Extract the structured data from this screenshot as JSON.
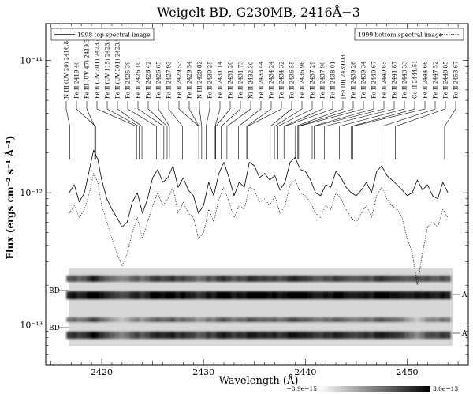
{
  "chart_data": {
    "type": "line",
    "title": "Weigelt BD, G230MB, 2416Å−3",
    "xlabel": "Wavelength (Å)",
    "ylabel": "Flux (ergs cm⁻² s⁻¹ Å⁻¹)",
    "xlim": [
      2414.5,
      2456
    ],
    "ylim": [
      5e-14,
      1.9e-11
    ],
    "yscale": "log",
    "xticks": [
      2420,
      2430,
      2440,
      2450
    ],
    "yticks": [
      {
        "value": 1e-13,
        "label": "10⁻¹³"
      },
      {
        "value": 1e-12,
        "label": "10⁻¹²"
      },
      {
        "value": 1e-11,
        "label": "10⁻¹¹"
      }
    ],
    "legend": [
      {
        "label": "1998 top spectral image",
        "style": "solid",
        "placement": "top-left"
      },
      {
        "label": "1999 bottom spectral image",
        "style": "dotted",
        "placement": "top-right"
      }
    ],
    "series": [
      {
        "name": "1998 top spectral image",
        "style": "solid",
        "x": [
          2416.8,
          2417.3,
          2417.8,
          2418.3,
          2418.8,
          2419.2,
          2419.6,
          2420.0,
          2420.5,
          2421.0,
          2421.5,
          2422.0,
          2422.5,
          2423.0,
          2423.5,
          2424.0,
          2424.5,
          2425.0,
          2425.5,
          2426.0,
          2426.5,
          2427.0,
          2427.5,
          2428.0,
          2428.5,
          2429.0,
          2429.5,
          2430.0,
          2430.5,
          2431.0,
          2431.5,
          2432.0,
          2432.5,
          2433.0,
          2433.5,
          2434.0,
          2434.5,
          2435.0,
          2435.5,
          2436.0,
          2436.5,
          2437.0,
          2437.5,
          2438.0,
          2438.5,
          2439.0,
          2439.5,
          2440.0,
          2440.5,
          2441.0,
          2441.5,
          2442.0,
          2442.5,
          2443.0,
          2443.5,
          2444.0,
          2444.5,
          2445.0,
          2445.5,
          2446.0,
          2446.5,
          2447.0,
          2447.5,
          2448.0,
          2448.5,
          2449.0,
          2449.5,
          2450.0,
          2450.5,
          2451.0,
          2451.5,
          2452.0,
          2452.5,
          2453.0,
          2453.5,
          2454.0
        ],
        "y": [
          1e-12,
          1.15e-12,
          8.5e-13,
          1e-12,
          1.5e-12,
          2.1e-12,
          1.8e-12,
          1.25e-12,
          9e-13,
          7.5e-13,
          6.5e-13,
          5.5e-13,
          6e-13,
          8.5e-13,
          1e-12,
          7e-13,
          9e-13,
          1.3e-12,
          1.5e-12,
          1.2e-12,
          1.3e-12,
          1.6e-12,
          1.1e-12,
          1.3e-12,
          1.05e-12,
          9.5e-13,
          7e-13,
          8e-13,
          1.2e-12,
          9.5e-13,
          1.4e-12,
          1.7e-12,
          1.3e-12,
          9.5e-13,
          1.2e-12,
          1.1e-12,
          1.7e-12,
          1.6e-12,
          1.3e-12,
          1.4e-12,
          1.25e-12,
          1.35e-12,
          1.05e-12,
          1.2e-12,
          1.7e-12,
          1.85e-12,
          1.5e-12,
          1.45e-12,
          1.25e-12,
          1e-12,
          9.5e-13,
          1.15e-12,
          1.1e-12,
          1.45e-12,
          1.3e-12,
          1.1e-12,
          1e-12,
          9.5e-13,
          1.05e-12,
          1.2e-12,
          1e-12,
          1.45e-12,
          1.6e-12,
          1.35e-12,
          1.25e-12,
          1.15e-12,
          1.05e-12,
          9.5e-13,
          1e-12,
          1.25e-12,
          1.05e-12,
          1.15e-12,
          9.5e-13,
          9e-13,
          1.2e-12,
          1e-12
        ]
      },
      {
        "name": "1999 bottom spectral image",
        "style": "dotted",
        "x": [
          2416.8,
          2417.3,
          2417.8,
          2418.3,
          2418.8,
          2419.2,
          2419.6,
          2420.0,
          2420.5,
          2421.0,
          2421.5,
          2422.0,
          2422.5,
          2423.0,
          2423.5,
          2424.0,
          2424.5,
          2425.0,
          2425.5,
          2426.0,
          2426.5,
          2427.0,
          2427.5,
          2428.0,
          2428.5,
          2429.0,
          2429.5,
          2430.0,
          2430.5,
          2431.0,
          2431.5,
          2432.0,
          2432.5,
          2433.0,
          2433.5,
          2434.0,
          2434.5,
          2435.0,
          2435.5,
          2436.0,
          2436.5,
          2437.0,
          2437.5,
          2438.0,
          2438.5,
          2439.0,
          2439.5,
          2440.0,
          2440.5,
          2441.0,
          2441.5,
          2442.0,
          2442.5,
          2443.0,
          2443.5,
          2444.0,
          2444.5,
          2445.0,
          2445.5,
          2446.0,
          2446.5,
          2447.0,
          2447.5,
          2448.0,
          2448.5,
          2449.0,
          2449.5,
          2450.0,
          2450.5,
          2451.0,
          2451.5,
          2452.0,
          2452.5,
          2453.0,
          2453.5,
          2454.0
        ],
        "y": [
          7e-13,
          8e-13,
          6.5e-13,
          7.5e-13,
          1e-12,
          1.4e-12,
          1.2e-12,
          8e-13,
          6e-13,
          4.5e-13,
          3.5e-13,
          2.8e-13,
          3.5e-13,
          5e-13,
          6.5e-13,
          4.5e-13,
          6e-13,
          8e-13,
          1e-12,
          8e-13,
          9e-13,
          1.1e-12,
          7e-13,
          8.5e-13,
          7e-13,
          6.5e-13,
          4.5e-13,
          5e-13,
          7.5e-13,
          6e-13,
          9e-13,
          1.1e-12,
          8.5e-13,
          6.5e-13,
          8e-13,
          7.5e-13,
          1.1e-12,
          1.05e-12,
          8.5e-13,
          9e-13,
          8e-13,
          9.5e-13,
          7e-13,
          8e-13,
          1.15e-12,
          1.25e-12,
          1e-12,
          9.5e-13,
          8.5e-13,
          7e-13,
          6.5e-13,
          8e-13,
          7.5e-13,
          1e-12,
          9e-13,
          7.5e-13,
          6.5e-13,
          6e-13,
          7e-13,
          8e-13,
          6.5e-13,
          9.5e-13,
          1.1e-12,
          9e-13,
          8e-13,
          7.5e-13,
          6.5e-13,
          4.5e-13,
          3.5e-13,
          2e-13,
          3.5e-13,
          5.5e-13,
          6e-13,
          5.5e-13,
          7.5e-13,
          6.5e-13
        ]
      }
    ],
    "line_ids": [
      {
        "label": "N III (UV 20) 2416.87",
        "wavelength": 2416.87
      },
      {
        "label": "Fe II 2419.40",
        "wavelength": 2419.4
      },
      {
        "label": "Fe III (UV 47) 2419.31",
        "wavelength": 2419.31
      },
      {
        "label": "Fe II (UV 301) 2423.42",
        "wavelength": 2423.42
      },
      {
        "label": "Fe II (UV 115) 2423.67",
        "wavelength": 2423.67
      },
      {
        "label": "Fe II (UV 301) 2423.95",
        "wavelength": 2423.95
      },
      {
        "label": "Fe II 2425.39",
        "wavelength": 2425.39
      },
      {
        "label": "Fe II 2426.10",
        "wavelength": 2426.1
      },
      {
        "label": "Fe II 2426.42",
        "wavelength": 2426.42
      },
      {
        "label": "Fe II 2426.65",
        "wavelength": 2426.65
      },
      {
        "label": "Fe II 2427.93",
        "wavelength": 2427.93
      },
      {
        "label": "Fe II 2429.53",
        "wavelength": 2429.53
      },
      {
        "label": "Fe II 2429.54",
        "wavelength": 2429.54
      },
      {
        "label": "N III 2429.82",
        "wavelength": 2429.82
      },
      {
        "label": "Fe II 2430.25",
        "wavelength": 2430.25
      },
      {
        "label": "Fe II 2431.14",
        "wavelength": 2431.14
      },
      {
        "label": "Fe II 2431.20",
        "wavelength": 2431.2
      },
      {
        "label": "Fe II 2431.73",
        "wavelength": 2431.73
      },
      {
        "label": "Ni II 2432.30",
        "wavelength": 2432.3
      },
      {
        "label": "Fe II 2433.44",
        "wavelength": 2433.44
      },
      {
        "label": "Fe II 2434.24",
        "wavelength": 2434.24
      },
      {
        "label": "Fe II 2434.32",
        "wavelength": 2434.32
      },
      {
        "label": "Fe II 2436.55",
        "wavelength": 2436.55
      },
      {
        "label": "Fe II 2436.96",
        "wavelength": 2436.96
      },
      {
        "label": "Fe II 2437.29",
        "wavelength": 2437.29
      },
      {
        "label": "Fe II 2437.90",
        "wavelength": 2437.9
      },
      {
        "label": "Fe II 2438.01",
        "wavelength": 2438.01
      },
      {
        "label": "[Fe III] 2439.03",
        "wavelength": 2439.03
      },
      {
        "label": "Fe II 2439.26",
        "wavelength": 2439.26
      },
      {
        "label": "Fe II 2439.34",
        "wavelength": 2439.34
      },
      {
        "label": "Fe II 2440.67",
        "wavelength": 2440.67
      },
      {
        "label": "Fe II 2440.85",
        "wavelength": 2440.85
      },
      {
        "label": "Fe II 2441.87",
        "wavelength": 2441.87
      },
      {
        "label": "Fe II 2443.33",
        "wavelength": 2443.33
      },
      {
        "label": "Co II 2444.51",
        "wavelength": 2444.51
      },
      {
        "label": "Fe II 2444.66",
        "wavelength": 2444.66
      },
      {
        "label": "Fe II 2447.52",
        "wavelength": 2447.52
      },
      {
        "label": "Fe II 2448.85",
        "wavelength": 2448.85
      },
      {
        "label": "Fe II 2453.67",
        "wavelength": 2453.67
      }
    ],
    "strip_labels": [
      {
        "left": "BD",
        "right": "A"
      },
      {
        "left": "BD",
        "right": "A"
      }
    ],
    "colorbar": {
      "min_label": "−8.9e−15",
      "max_label": "3.0e−13"
    }
  }
}
